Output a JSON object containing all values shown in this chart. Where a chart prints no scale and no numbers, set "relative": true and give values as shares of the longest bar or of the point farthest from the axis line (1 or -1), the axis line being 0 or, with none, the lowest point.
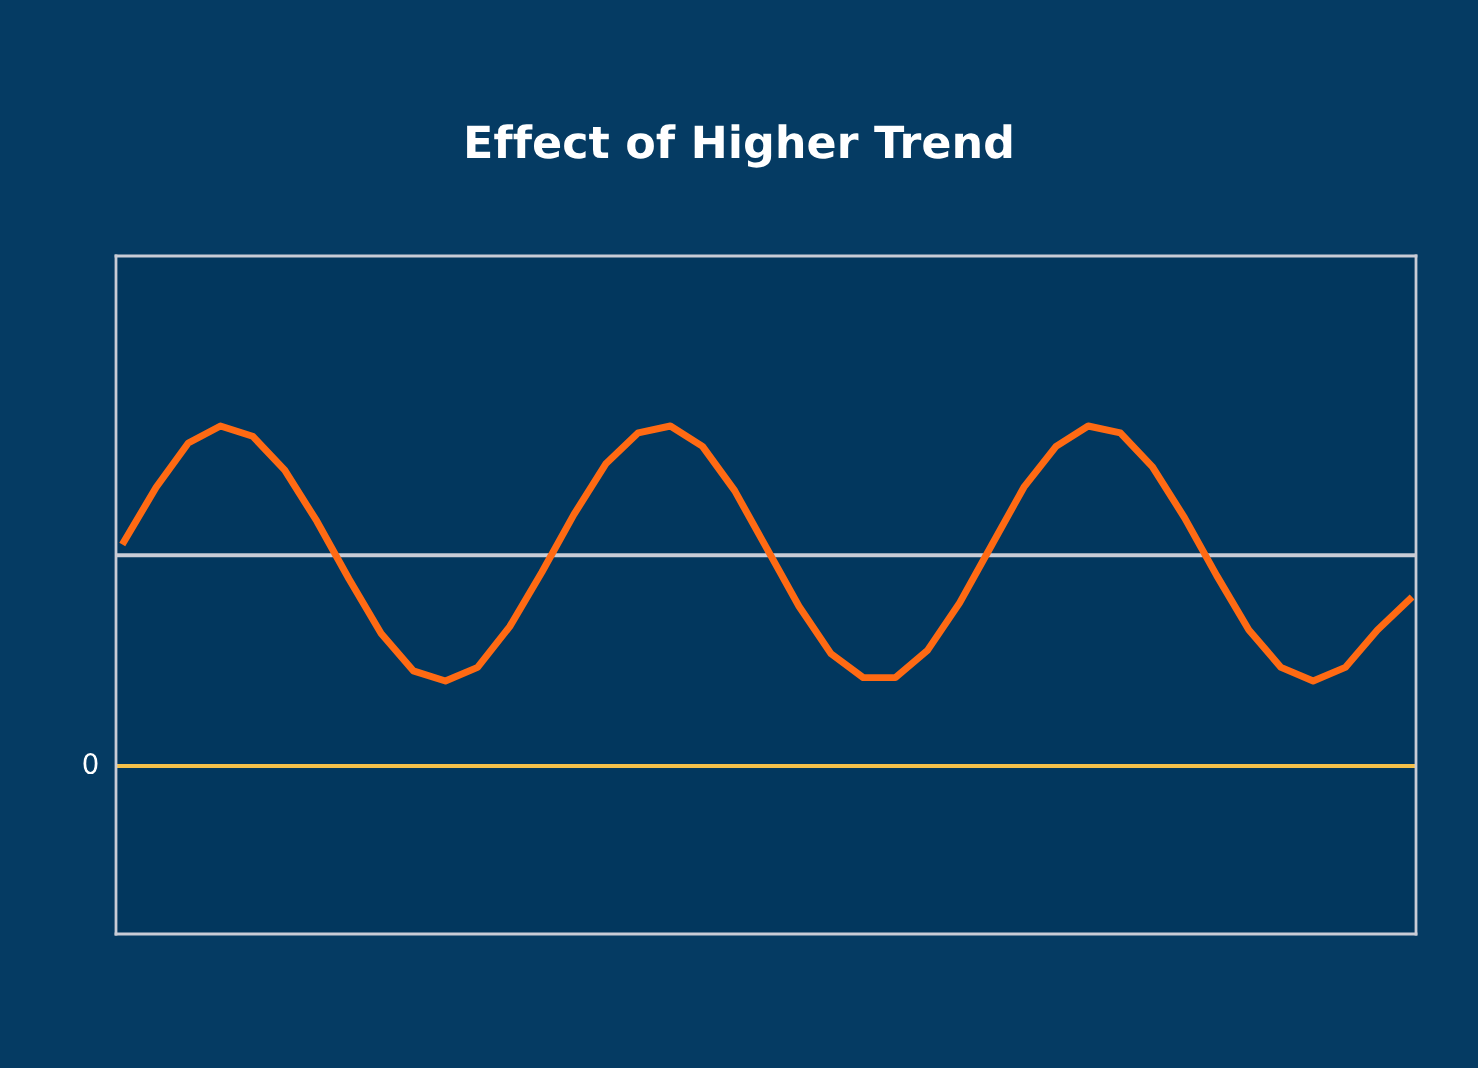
{
  "chart_data": {
    "type": "line",
    "title": "Effect of Higher Trend",
    "relative": true,
    "categories": [
      null,
      null,
      null,
      null,
      null,
      null,
      null,
      null,
      null,
      null,
      null,
      null,
      null,
      null,
      null,
      null,
      null,
      null,
      null,
      null,
      null,
      null,
      null,
      null,
      null,
      null,
      null,
      null,
      null,
      null,
      null,
      null,
      null,
      null,
      null,
      null,
      null,
      null,
      null,
      null,
      null
    ],
    "series": [
      {
        "color": "#ff6a13",
        "values": [
          0.66,
          0.82,
          0.95,
          1.0,
          0.97,
          0.87,
          0.72,
          0.55,
          0.39,
          0.28,
          0.25,
          0.29,
          0.41,
          0.57,
          0.74,
          0.89,
          0.98,
          1.0,
          0.94,
          0.81,
          0.64,
          0.47,
          0.33,
          0.26,
          0.26,
          0.34,
          0.48,
          0.65,
          0.82,
          0.94,
          1.0,
          0.98,
          0.88,
          0.73,
          0.56,
          0.4,
          0.29,
          0.25,
          0.29,
          0.4,
          0.49
        ]
      }
    ],
    "ref_lines": [
      {
        "axis": "y",
        "value": 0,
        "label": "0",
        "color": "#f5c04a"
      },
      {
        "axis": "y",
        "value": 0.62,
        "color": "#c9ccd6"
      }
    ],
    "marker": "none",
    "line_style": "solid"
  }
}
